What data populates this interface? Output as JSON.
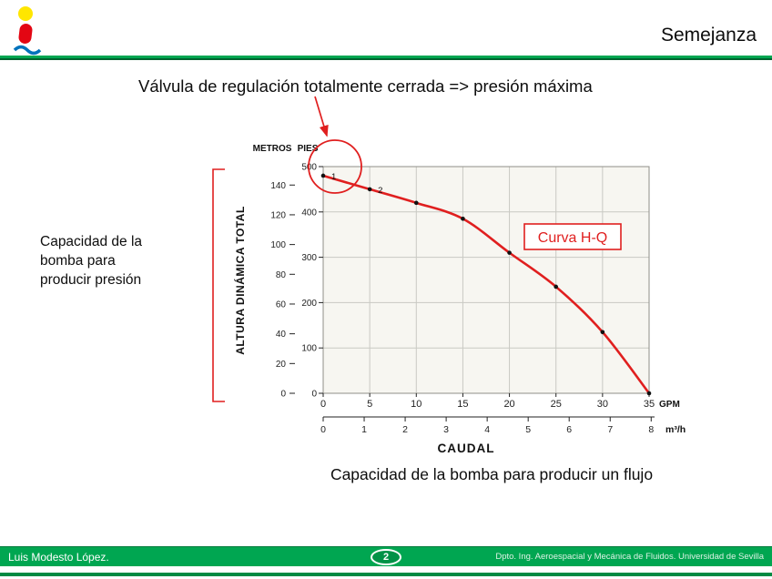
{
  "header": {
    "title": "Semejanza"
  },
  "annotation": {
    "valve_text": "Válvula de regulación totalmente cerrada => presión máxima"
  },
  "left_note": {
    "text": "Capacidad de la\nbomba para\nproducir presión"
  },
  "caption": {
    "text": "Capacidad de la bomba para producir un flujo"
  },
  "colors": {
    "accent_red": "#E01F1F",
    "brand_green": "#00A651",
    "grid_gray": "#C9C9C3"
  },
  "chart_data": {
    "type": "line",
    "title": "",
    "series_label": "Curva H-Q",
    "x_gpm": [
      0,
      5,
      10,
      15,
      20,
      25,
      30,
      35
    ],
    "y_pies": [
      480,
      450,
      420,
      385,
      310,
      235,
      135,
      0
    ],
    "point_labels": [
      "1",
      "2"
    ],
    "y_axis": {
      "metros_label": "METROS",
      "pies_label": "PIES",
      "metros_ticks": [
        140,
        120,
        100,
        80,
        60,
        40,
        20,
        0
      ],
      "pies_ticks": [
        500,
        400,
        300,
        200,
        100,
        0
      ],
      "axis_title": "ALTURA DINÁMICA TOTAL",
      "range_pies": [
        0,
        500
      ]
    },
    "x_axis": {
      "gpm_ticks": [
        0,
        5,
        10,
        15,
        20,
        25,
        30,
        35
      ],
      "gpm_unit": "GPM",
      "m3h_ticks": [
        0,
        1,
        2,
        3,
        4,
        5,
        6,
        7,
        8
      ],
      "m3h_unit": "m³/h",
      "axis_title": "CAUDAL",
      "range_gpm": [
        0,
        35
      ]
    },
    "grid": true,
    "legend_position": "none"
  },
  "footer": {
    "author": "Luis Modesto López.",
    "page": "2",
    "department": "Dpto. Ing. Aeroespacial y Mecánica de Fluidos. Universidad de Sevilla"
  }
}
